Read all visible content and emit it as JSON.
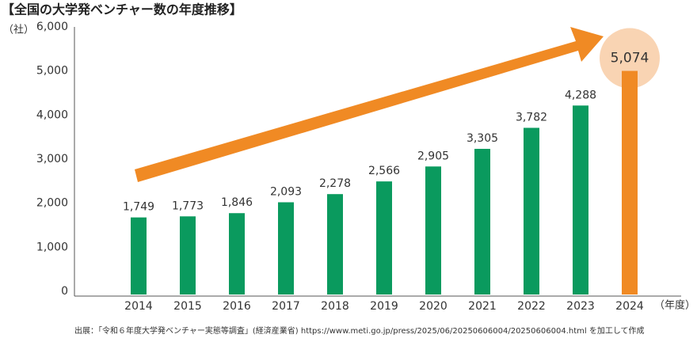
{
  "chart_data": {
    "type": "bar",
    "title": "【全国の大学発ベンチャー数の年度推移】",
    "y_unit": "（社）",
    "x_unit": "（年度）",
    "categories": [
      "2014",
      "2015",
      "2016",
      "2017",
      "2018",
      "2019",
      "2020",
      "2021",
      "2022",
      "2023",
      "2024"
    ],
    "values": [
      1749,
      1773,
      1846,
      2093,
      2278,
      2566,
      2905,
      3305,
      3782,
      4288,
      5074
    ],
    "value_labels": [
      "1,749",
      "1,773",
      "1,846",
      "2,093",
      "2,278",
      "2,566",
      "2,905",
      "3,305",
      "3,782",
      "4,288",
      "5,074"
    ],
    "color": "#0a9a5e",
    "highlight_color": "#f08a24",
    "highlight_index": 10,
    "highlight_circle_color": "#f9d4b3",
    "ylim": [
      0,
      6000
    ],
    "yticks": [
      0,
      {
        "value": 1000,
        "label": "1,000"
      },
      {
        "value": 2000,
        "label": "2,000"
      },
      {
        "value": 3000,
        "label": "3,000"
      },
      {
        "value": 4000,
        "label": "4,000"
      },
      {
        "value": 5000,
        "label": "5,000"
      },
      {
        "value": 6000,
        "label": "6,000"
      }
    ],
    "source": "出展：「令和６年度大学発ベンチャー実態等調査」(経済産業省) https://www.meti.go.jp/press/2025/06/20250606004/20250606004.html を加工して作成"
  }
}
